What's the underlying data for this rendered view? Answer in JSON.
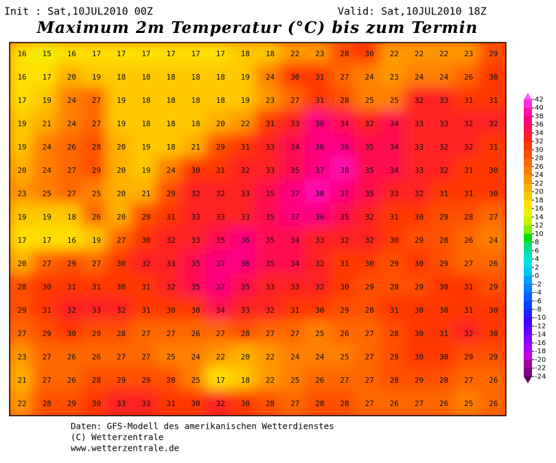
{
  "header": {
    "init": "Init : Sat,10JUL2010 00Z",
    "valid": "Valid: Sat,10JUL2010 18Z",
    "title": "Maximum 2m Temperatur (°C) bis zum Termin"
  },
  "map": {
    "grid": [
      [
        16,
        15,
        16,
        17,
        17,
        17,
        17,
        17,
        17,
        18,
        18,
        22,
        23,
        28,
        30,
        22,
        22,
        22,
        23,
        29
      ],
      [
        16,
        17,
        20,
        19,
        18,
        18,
        18,
        18,
        18,
        19,
        24,
        30,
        31,
        27,
        24,
        23,
        24,
        24,
        26,
        30
      ],
      [
        17,
        19,
        24,
        27,
        19,
        18,
        18,
        18,
        18,
        19,
        23,
        27,
        31,
        28,
        25,
        25,
        32,
        33,
        31,
        31
      ],
      [
        19,
        21,
        24,
        27,
        19,
        18,
        18,
        18,
        20,
        22,
        31,
        33,
        36,
        34,
        32,
        34,
        33,
        33,
        32,
        32
      ],
      [
        19,
        24,
        26,
        28,
        20,
        19,
        18,
        21,
        29,
        31,
        33,
        34,
        36,
        36,
        35,
        34,
        33,
        32,
        32,
        31
      ],
      [
        20,
        24,
        27,
        29,
        20,
        19,
        24,
        30,
        31,
        32,
        33,
        35,
        37,
        38,
        35,
        34,
        33,
        32,
        31,
        30
      ],
      [
        23,
        25,
        27,
        25,
        20,
        21,
        29,
        32,
        32,
        33,
        35,
        37,
        38,
        37,
        35,
        33,
        32,
        31,
        31,
        30
      ],
      [
        19,
        19,
        18,
        26,
        20,
        29,
        31,
        33,
        33,
        33,
        35,
        37,
        36,
        35,
        32,
        31,
        30,
        29,
        28,
        27
      ],
      [
        17,
        17,
        16,
        19,
        27,
        30,
        32,
        33,
        35,
        36,
        35,
        34,
        33,
        32,
        32,
        30,
        29,
        28,
        26,
        24
      ],
      [
        20,
        27,
        29,
        27,
        30,
        32,
        33,
        35,
        37,
        36,
        35,
        34,
        32,
        31,
        30,
        29,
        30,
        29,
        27,
        26
      ],
      [
        28,
        30,
        31,
        31,
        30,
        31,
        32,
        35,
        37,
        35,
        33,
        33,
        32,
        30,
        29,
        28,
        29,
        30,
        31,
        29
      ],
      [
        29,
        31,
        32,
        33,
        32,
        31,
        30,
        30,
        34,
        33,
        32,
        31,
        30,
        29,
        28,
        31,
        30,
        30,
        31,
        30
      ],
      [
        27,
        29,
        30,
        29,
        28,
        27,
        27,
        26,
        27,
        28,
        27,
        27,
        25,
        26,
        27,
        28,
        30,
        31,
        32,
        30
      ],
      [
        23,
        27,
        26,
        26,
        27,
        27,
        25,
        24,
        22,
        20,
        22,
        24,
        24,
        25,
        27,
        29,
        30,
        30,
        29,
        29
      ],
      [
        21,
        27,
        26,
        28,
        29,
        29,
        28,
        25,
        17,
        18,
        22,
        25,
        26,
        27,
        27,
        28,
        29,
        28,
        27,
        26
      ],
      [
        22,
        28,
        29,
        30,
        33,
        33,
        31,
        30,
        32,
        30,
        28,
        27,
        28,
        28,
        27,
        26,
        27,
        26,
        25,
        26
      ]
    ]
  },
  "colorbar": {
    "labels": [
      42,
      40,
      38,
      36,
      34,
      32,
      30,
      28,
      26,
      24,
      22,
      20,
      18,
      16,
      14,
      12,
      10,
      8,
      6,
      4,
      2,
      0,
      -2,
      -4,
      -6,
      -8,
      -10,
      -12,
      -14,
      -16,
      -18,
      -20,
      -22,
      -24
    ],
    "colors": [
      "#ff60ff",
      "#ff30e0",
      "#ff10b0",
      "#ff0080",
      "#ff1050",
      "#ff2020",
      "#ff3800",
      "#ff5000",
      "#ff6800",
      "#ff8000",
      "#ff9800",
      "#ffb000",
      "#ffc800",
      "#ffe000",
      "#f0f000",
      "#c8f000",
      "#80f000",
      "#00e000",
      "#00e080",
      "#00e0c0",
      "#00e0e0",
      "#00c8f0",
      "#00a0ff",
      "#0080ff",
      "#0060ff",
      "#0040ff",
      "#2020ff",
      "#4000ff",
      "#6000ff",
      "#8000ff",
      "#a000ff",
      "#c000e0",
      "#a000a0",
      "#800080",
      "#600060"
    ]
  },
  "footer": {
    "line1": "Daten: GFS-Modell des amerikanischen Wetterdienstes",
    "line2": "(C) Wetterzentrale",
    "line3": "www.wetterzentrale.de"
  }
}
